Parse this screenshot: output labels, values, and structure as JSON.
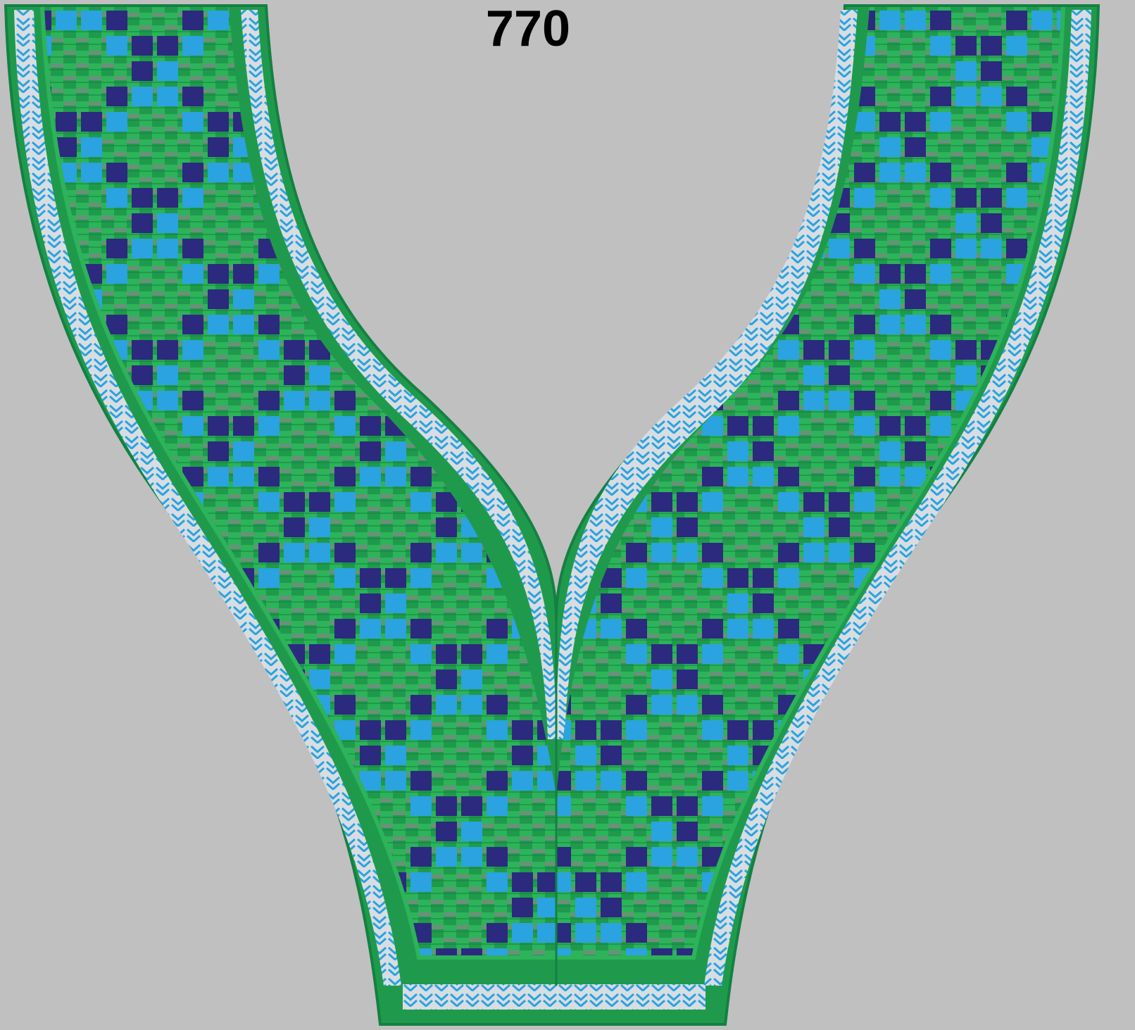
{
  "design": {
    "number": "770"
  },
  "colors": {
    "background": "#c0c0c0",
    "thread_green": "#1f9a4c",
    "thread_green_light": "#2db35a",
    "thread_navy": "#2b2a7e",
    "thread_blue": "#2aa3e0",
    "thread_gray": "#8c8c8c",
    "thread_white": "#d8dde2",
    "text": "#000000"
  }
}
